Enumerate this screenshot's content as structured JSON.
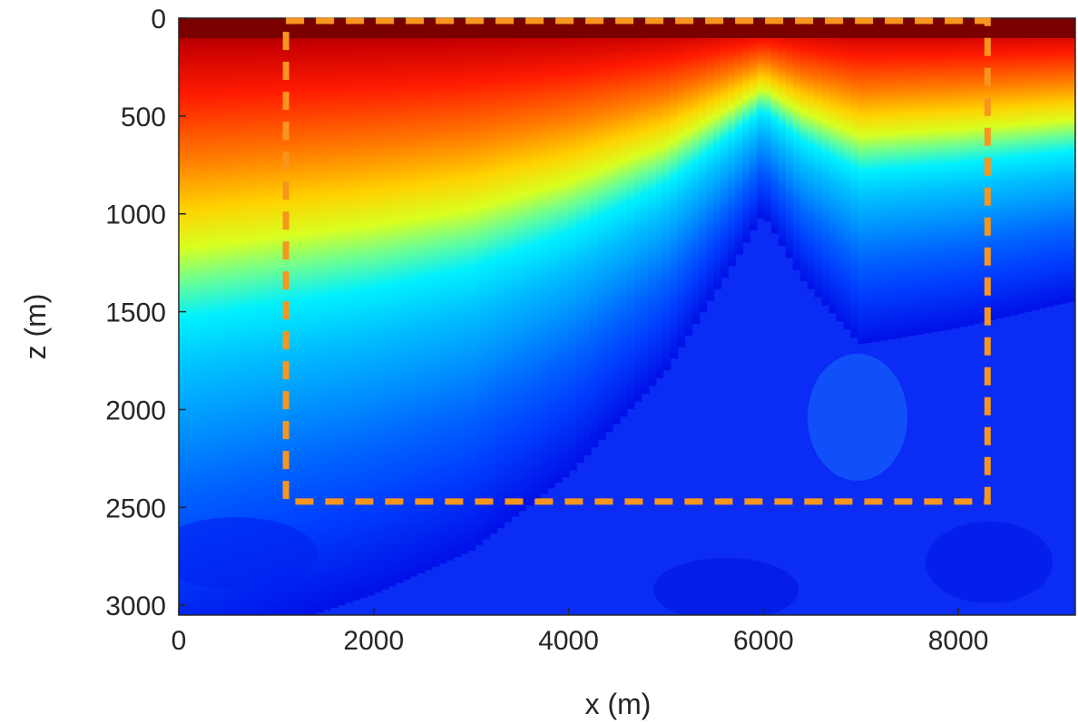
{
  "chart_data": {
    "type": "heatmap",
    "colormap": "jet",
    "title": "",
    "xlabel": "x (m)",
    "ylabel": "z (m)",
    "xlim": [
      0,
      9200
    ],
    "ylim": [
      0,
      3050
    ],
    "y_reversed": true,
    "x_ticks": [
      0,
      2000,
      4000,
      6000,
      8000
    ],
    "y_ticks": [
      0,
      500,
      1000,
      1500,
      2000,
      2500,
      3000
    ],
    "x_tick_labels": [
      "0",
      "2000",
      "4000",
      "6000",
      "8000"
    ],
    "y_tick_labels": [
      "0",
      "500",
      "1000",
      "1500",
      "2000",
      "2500",
      "3000"
    ],
    "grid": false,
    "field_description_points": [
      {
        "x": 0,
        "interface_depth": 1180
      },
      {
        "x": 1000,
        "interface_depth": 1120
      },
      {
        "x": 2000,
        "interface_depth": 1060
      },
      {
        "x": 3000,
        "interface_depth": 980
      },
      {
        "x": 4000,
        "interface_depth": 840
      },
      {
        "x": 5000,
        "interface_depth": 650
      },
      {
        "x": 5800,
        "interface_depth": 420
      },
      {
        "x": 6000,
        "interface_depth": 360
      },
      {
        "x": 6400,
        "interface_depth": 480
      },
      {
        "x": 7000,
        "interface_depth": 600
      },
      {
        "x": 8000,
        "interface_depth": 570
      },
      {
        "x": 9200,
        "interface_depth": 520
      }
    ],
    "annotation_box": {
      "style": "dashed",
      "color": "#f7961e",
      "x_range": [
        1100,
        8300
      ],
      "z_range": [
        0,
        2470
      ]
    }
  }
}
